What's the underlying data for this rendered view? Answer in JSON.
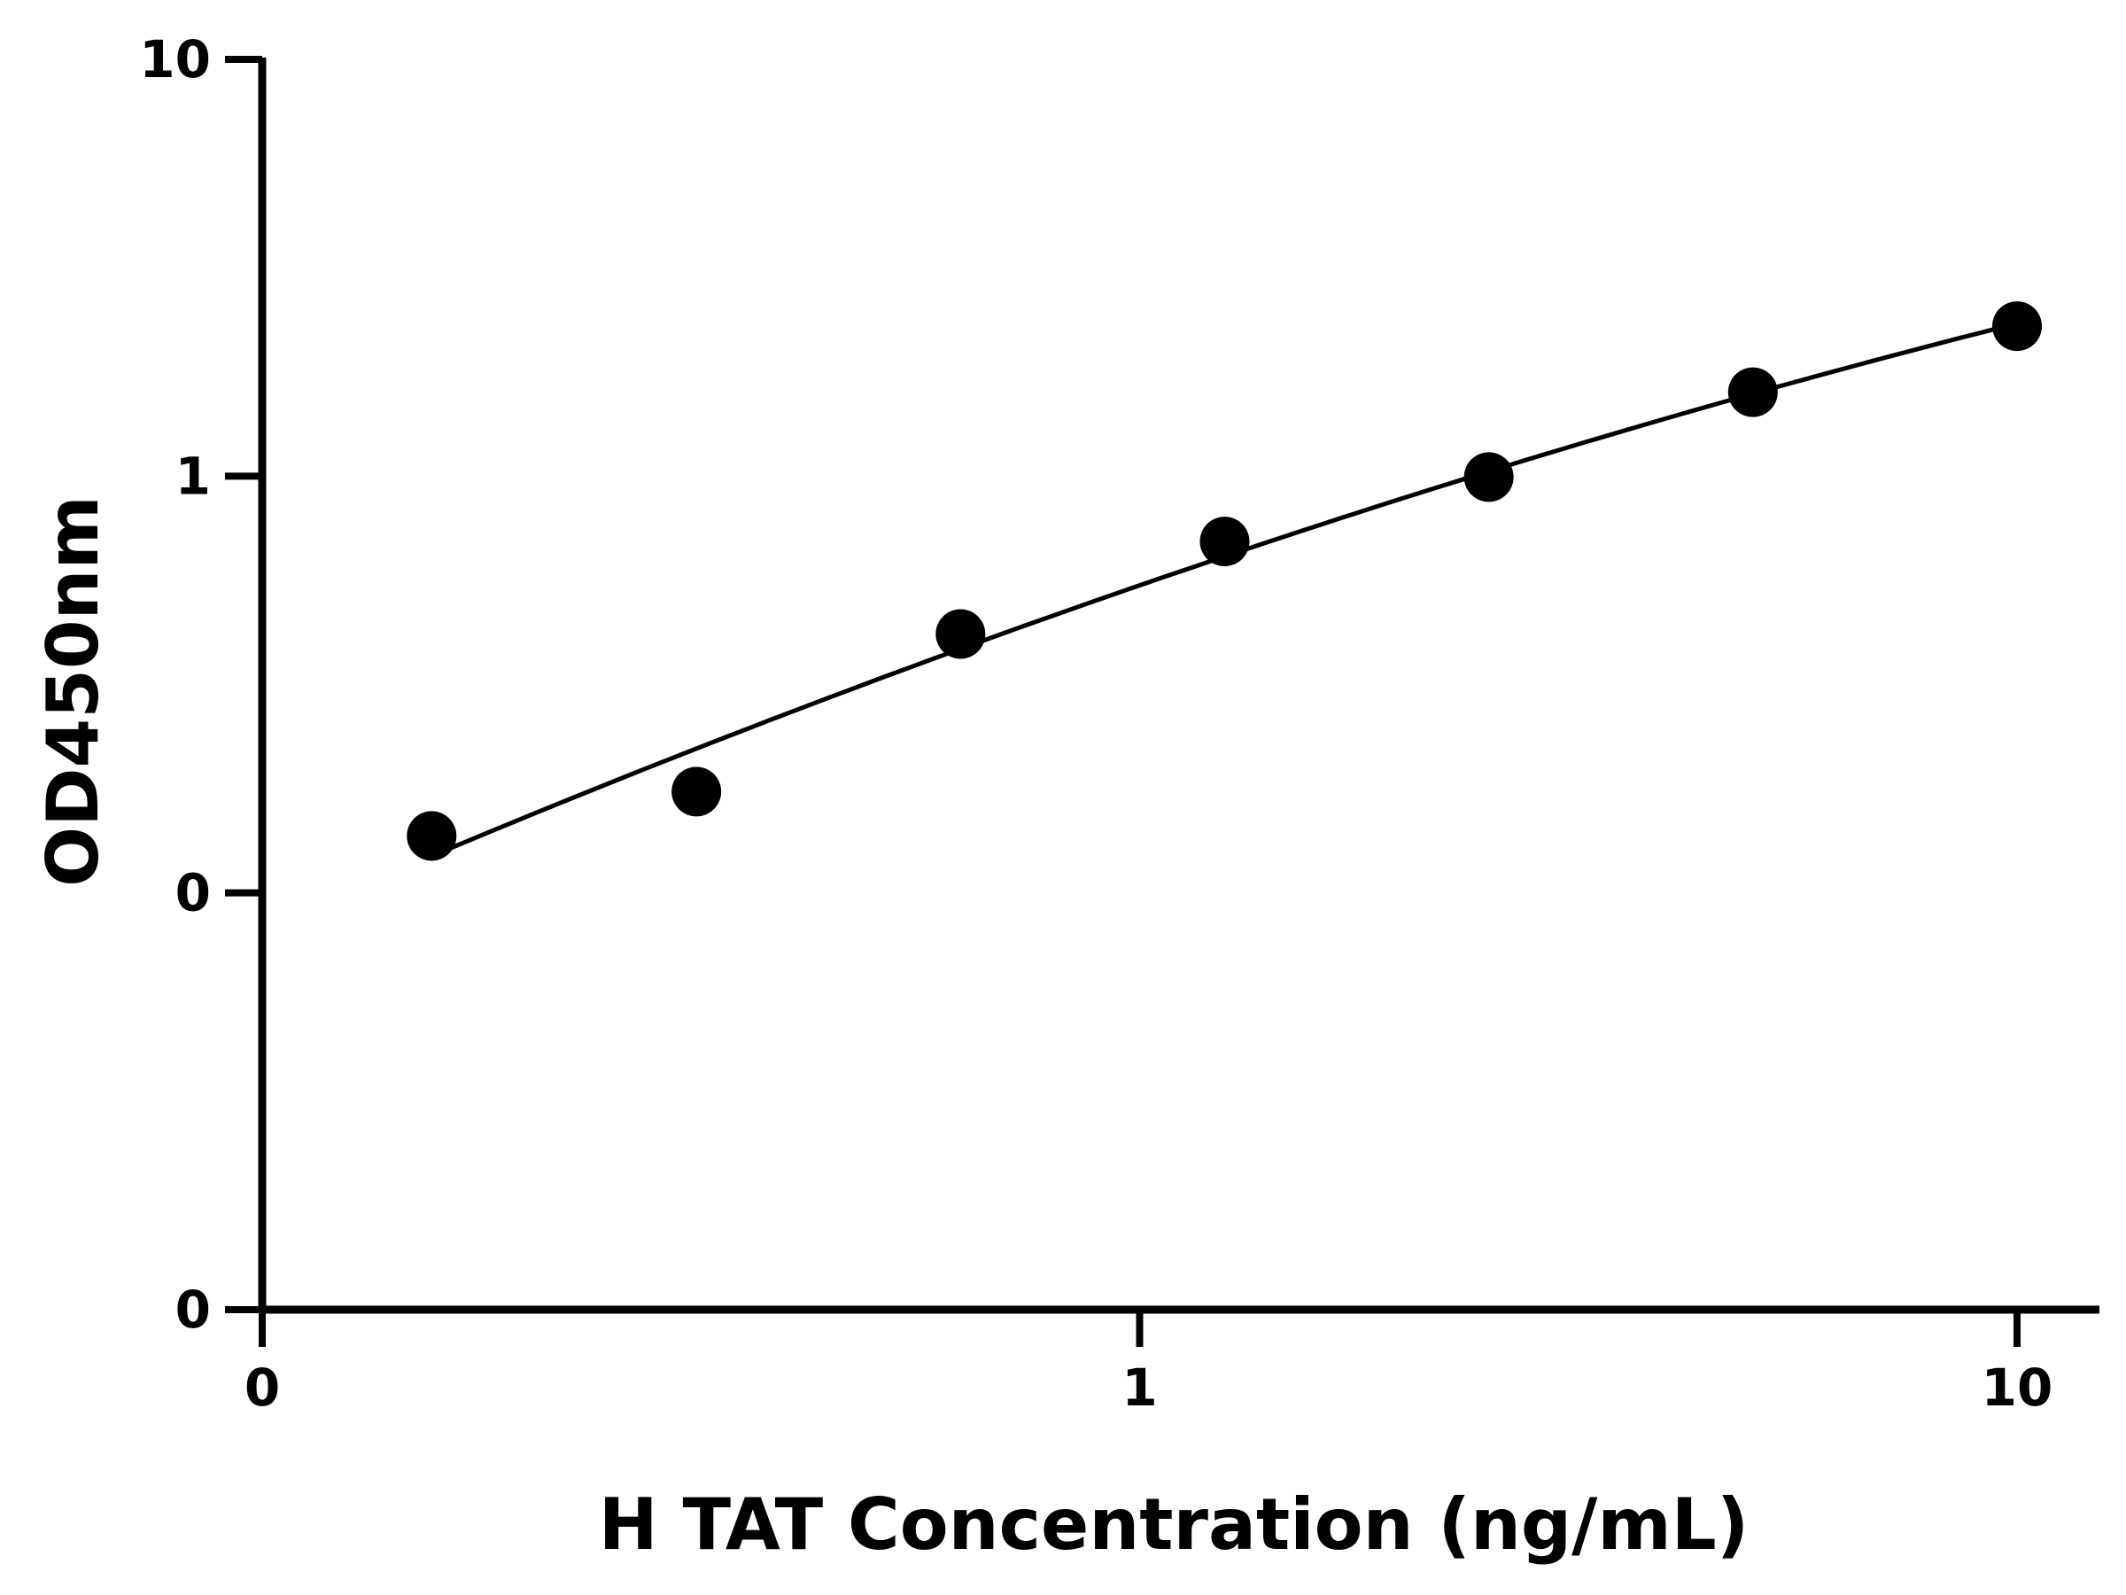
{
  "chart_data": {
    "type": "scatter",
    "title": "",
    "xlabel": "H TAT Concentration (ng/mL)",
    "ylabel": "OD450nm",
    "x_scale": "log",
    "y_scale": "log",
    "xlim": [
      0.1,
      12
    ],
    "ylim": [
      0.01,
      10
    ],
    "x_ticks": [
      {
        "value": 0.1,
        "label": "0"
      },
      {
        "value": 1,
        "label": "1"
      },
      {
        "value": 10,
        "label": "10"
      }
    ],
    "y_ticks": [
      {
        "value": 0.01,
        "label": "0"
      },
      {
        "value": 0.1,
        "label": "0"
      },
      {
        "value": 1,
        "label": "1"
      },
      {
        "value": 10,
        "label": "10"
      }
    ],
    "series": [
      {
        "marker": "circle",
        "fit_line": true,
        "x": [
          0.156,
          0.3125,
          0.625,
          1.25,
          2.5,
          5,
          10
        ],
        "y": [
          0.137,
          0.175,
          0.418,
          0.697,
          0.995,
          1.59,
          2.29
        ]
      }
    ],
    "grid": false,
    "legend": "none",
    "colors": {
      "marker": "#000000",
      "line": "#000000",
      "axis": "#000000"
    }
  }
}
